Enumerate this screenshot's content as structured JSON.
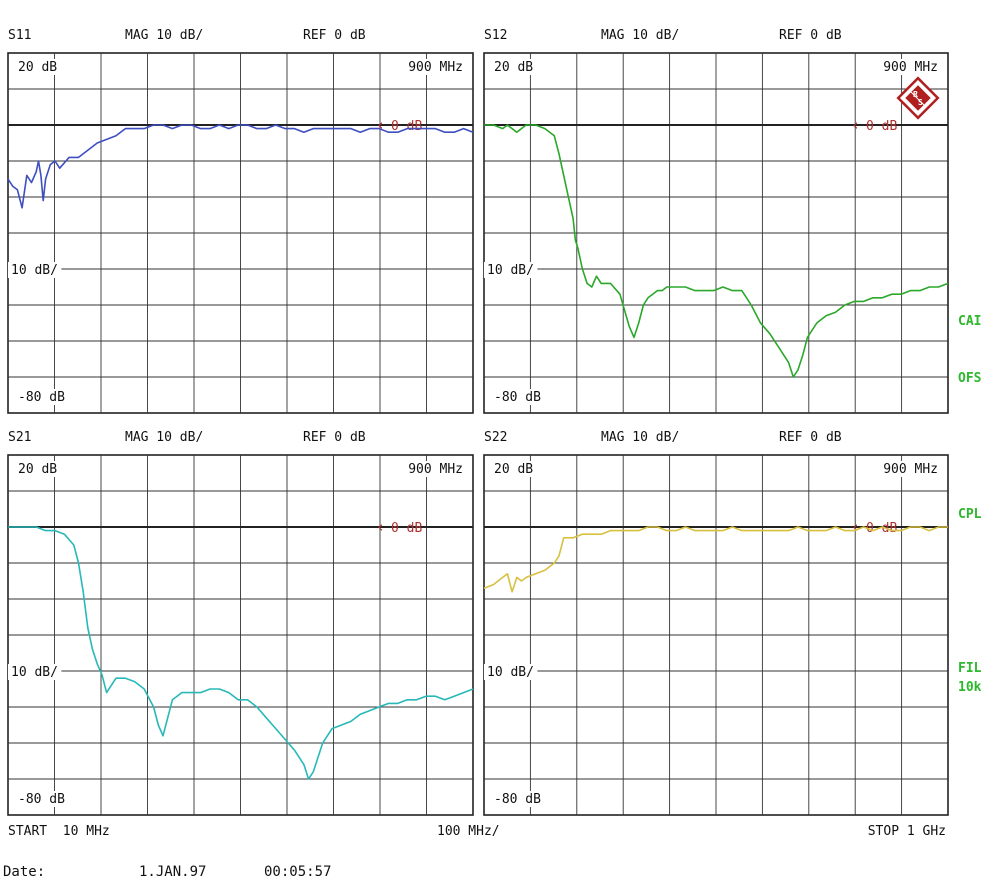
{
  "colors": {
    "grid": "#333333",
    "frame": "#222222",
    "text": "#111111",
    "ref": "#b03030",
    "side": "#2db82d"
  },
  "panels": [
    {
      "id": "s11",
      "param": "S11",
      "mag": "MAG 10 dB/",
      "ref": "REF 0 dB",
      "top_label": "20 dB",
      "mid_label": "10 dB/",
      "bot_label": "-80 dB",
      "freq_marker": "900 MHz",
      "ref_marker": "0 dB",
      "color": "#3e4fc0",
      "show_logo": false
    },
    {
      "id": "s12",
      "param": "S12",
      "mag": "MAG 10 dB/",
      "ref": "REF 0 dB",
      "top_label": "20 dB",
      "mid_label": "10 dB/",
      "bot_label": "-80 dB",
      "freq_marker": "900 MHz",
      "ref_marker": "0 dB",
      "color": "#2aa82a",
      "show_logo": true
    },
    {
      "id": "s21",
      "param": "S21",
      "mag": "MAG 10 dB/",
      "ref": "REF 0 dB",
      "top_label": "20 dB",
      "mid_label": "10 dB/",
      "bot_label": "-80 dB",
      "freq_marker": "900 MHz",
      "ref_marker": "0 dB",
      "color": "#28b8b8",
      "show_logo": false
    },
    {
      "id": "s22",
      "param": "S22",
      "mag": "MAG 10 dB/",
      "ref": "REF 0 dB",
      "top_label": "20 dB",
      "mid_label": "10 dB/",
      "bot_label": "-80 dB",
      "freq_marker": "900 MHz",
      "ref_marker": "0 dB",
      "color": "#d8c040",
      "show_logo": false
    }
  ],
  "side_labels": {
    "cai": "CAI",
    "ofs": "OFS",
    "cpl": "CPL",
    "fil": "FIL",
    "bw": "10k"
  },
  "footer": {
    "start": "START  10 MHz",
    "span": "100 MHz/",
    "stop": "STOP 1 GHz",
    "date_label": "Date:",
    "date_value": "1.JAN.97",
    "time_value": "00:05:57"
  },
  "chart_data": [
    {
      "type": "line",
      "name": "S11",
      "xunit": "MHz",
      "yunit": "dB",
      "xlim": [
        10,
        1000
      ],
      "ylim": [
        -80,
        20
      ],
      "grid": true,
      "x": [
        10,
        20,
        30,
        40,
        50,
        60,
        70,
        75,
        80,
        85,
        90,
        100,
        110,
        120,
        140,
        160,
        180,
        200,
        220,
        240,
        260,
        280,
        300,
        320,
        340,
        360,
        380,
        400,
        420,
        440,
        460,
        480,
        500,
        520,
        540,
        560,
        580,
        600,
        620,
        640,
        660,
        680,
        700,
        720,
        740,
        760,
        780,
        800,
        820,
        840,
        860,
        880,
        900,
        920,
        940,
        960,
        980,
        1000
      ],
      "y": [
        -15,
        -17,
        -18,
        -23,
        -14,
        -16,
        -13,
        -10,
        -14,
        -21,
        -15,
        -11,
        -10,
        -12,
        -9,
        -9,
        -7,
        -5,
        -4,
        -3,
        -1,
        -1,
        -1,
        0,
        0,
        -1,
        0,
        0,
        -1,
        -1,
        0,
        -1,
        0,
        0,
        -1,
        -1,
        0,
        -1,
        -1,
        -2,
        -1,
        -1,
        -1,
        -1,
        -1,
        -2,
        -1,
        -1,
        -2,
        -2,
        -1,
        -1,
        -1,
        -1,
        -2,
        -2,
        -1,
        -2
      ]
    },
    {
      "type": "line",
      "name": "S12",
      "xunit": "MHz",
      "yunit": "dB",
      "xlim": [
        10,
        1000
      ],
      "ylim": [
        -80,
        20
      ],
      "grid": true,
      "x": [
        10,
        30,
        50,
        60,
        80,
        100,
        120,
        140,
        160,
        170,
        180,
        190,
        200,
        205,
        210,
        220,
        230,
        240,
        250,
        260,
        280,
        300,
        320,
        330,
        340,
        350,
        360,
        370,
        380,
        390,
        400,
        420,
        440,
        460,
        480,
        500,
        520,
        540,
        560,
        580,
        600,
        620,
        640,
        660,
        670,
        680,
        690,
        700,
        720,
        740,
        760,
        780,
        800,
        820,
        840,
        860,
        880,
        900,
        920,
        940,
        960,
        980,
        1000
      ],
      "y": [
        0,
        0,
        -1,
        0,
        -2,
        0,
        0,
        -1,
        -3,
        -8,
        -14,
        -20,
        -26,
        -32,
        -34,
        -40,
        -44,
        -45,
        -42,
        -44,
        -44,
        -47,
        -56,
        -59,
        -55,
        -50,
        -48,
        -47,
        -46,
        -46,
        -45,
        -45,
        -45,
        -46,
        -46,
        -46,
        -45,
        -46,
        -46,
        -50,
        -55,
        -58,
        -62,
        -66,
        -70,
        -68,
        -64,
        -59,
        -55,
        -53,
        -52,
        -50,
        -49,
        -49,
        -48,
        -48,
        -47,
        -47,
        -46,
        -46,
        -45,
        -45,
        -44
      ]
    },
    {
      "type": "line",
      "name": "S21",
      "xunit": "MHz",
      "yunit": "dB",
      "xlim": [
        10,
        1000
      ],
      "ylim": [
        -80,
        20
      ],
      "grid": true,
      "x": [
        10,
        30,
        50,
        70,
        90,
        110,
        130,
        150,
        160,
        170,
        180,
        190,
        200,
        210,
        220,
        240,
        260,
        280,
        300,
        320,
        330,
        340,
        350,
        360,
        370,
        380,
        390,
        400,
        420,
        440,
        460,
        480,
        500,
        520,
        540,
        560,
        580,
        600,
        620,
        640,
        650,
        660,
        670,
        680,
        690,
        700,
        720,
        740,
        760,
        780,
        800,
        820,
        840,
        860,
        880,
        900,
        920,
        940,
        960,
        980,
        1000
      ],
      "y": [
        0,
        0,
        0,
        0,
        -1,
        -1,
        -2,
        -5,
        -10,
        -18,
        -28,
        -34,
        -38,
        -41,
        -46,
        -42,
        -42,
        -43,
        -45,
        -50,
        -55,
        -58,
        -53,
        -48,
        -47,
        -46,
        -46,
        -46,
        -46,
        -45,
        -45,
        -46,
        -48,
        -48,
        -50,
        -53,
        -56,
        -59,
        -62,
        -66,
        -70,
        -68,
        -64,
        -60,
        -58,
        -56,
        -55,
        -54,
        -52,
        -51,
        -50,
        -49,
        -49,
        -48,
        -48,
        -47,
        -47,
        -48,
        -47,
        -46,
        -45
      ]
    },
    {
      "type": "line",
      "name": "S22",
      "xunit": "MHz",
      "yunit": "dB",
      "xlim": [
        10,
        1000
      ],
      "ylim": [
        -80,
        20
      ],
      "grid": true,
      "x": [
        10,
        30,
        50,
        60,
        70,
        75,
        80,
        90,
        100,
        120,
        140,
        160,
        170,
        180,
        200,
        220,
        240,
        260,
        280,
        300,
        320,
        340,
        360,
        380,
        400,
        420,
        440,
        460,
        480,
        500,
        520,
        540,
        560,
        580,
        600,
        620,
        640,
        660,
        680,
        700,
        720,
        740,
        760,
        780,
        800,
        820,
        840,
        860,
        880,
        900,
        920,
        940,
        960,
        980,
        1000
      ],
      "y": [
        -17,
        -16,
        -14,
        -13,
        -18,
        -16,
        -14,
        -15,
        -14,
        -13,
        -12,
        -10,
        -8,
        -3,
        -3,
        -2,
        -2,
        -2,
        -1,
        -1,
        -1,
        -1,
        0,
        0,
        -1,
        -1,
        0,
        -1,
        -1,
        -1,
        -1,
        0,
        -1,
        -1,
        -1,
        -1,
        -1,
        -1,
        0,
        -1,
        -1,
        -1,
        0,
        -1,
        -1,
        0,
        -1,
        0,
        -1,
        -1,
        0,
        0,
        -1,
        0,
        0
      ]
    }
  ]
}
